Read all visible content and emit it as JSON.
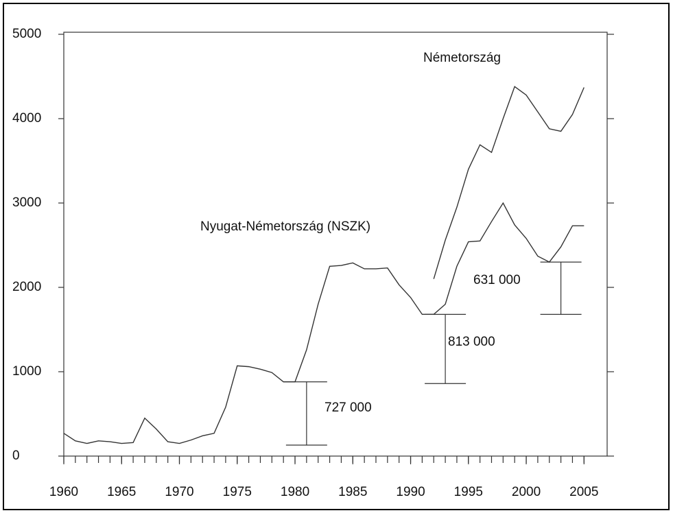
{
  "chart_data": {
    "type": "line",
    "x": [
      1960,
      1961,
      1962,
      1963,
      1964,
      1965,
      1966,
      1967,
      1968,
      1969,
      1970,
      1971,
      1972,
      1973,
      1974,
      1975,
      1976,
      1977,
      1978,
      1979,
      1980,
      1981,
      1982,
      1983,
      1984,
      1985,
      1986,
      1987,
      1988,
      1989,
      1990,
      1991,
      1992,
      1993,
      1994,
      1995,
      1996,
      1997,
      1998,
      1999,
      2000,
      2001,
      2002,
      2003,
      2004,
      2005
    ],
    "series": [
      {
        "name": "Nyugat-Németország (NSZK)",
        "color": "#333333",
        "values": [
          270,
          180,
          150,
          180,
          170,
          150,
          160,
          450,
          320,
          170,
          150,
          190,
          240,
          270,
          580,
          1070,
          1060,
          1030,
          990,
          880,
          880,
          1260,
          1800,
          2250,
          2260,
          2290,
          2220,
          2220,
          2230,
          2030,
          1880,
          1680,
          1680,
          1800,
          2250,
          2540,
          2550,
          2780,
          3000,
          2740,
          2580,
          2370,
          2300,
          2480,
          2730,
          2730
        ]
      },
      {
        "name": "Németország",
        "color": "#333333",
        "values": [
          null,
          null,
          null,
          null,
          null,
          null,
          null,
          null,
          null,
          null,
          null,
          null,
          null,
          null,
          null,
          null,
          null,
          null,
          null,
          null,
          null,
          null,
          null,
          null,
          null,
          null,
          null,
          null,
          null,
          null,
          null,
          null,
          2100,
          2560,
          2950,
          3400,
          3690,
          3600,
          4000,
          4380,
          4280,
          4080,
          3880,
          3850,
          4050,
          4370
        ]
      }
    ],
    "ranges": [
      {
        "x": 1981,
        "high": 880,
        "low": 130,
        "label": "727 000"
      },
      {
        "x": 1993,
        "high": 1680,
        "low": 860,
        "label": "813 000"
      },
      {
        "x": 2003,
        "high": 2300,
        "low": 1680,
        "label": "631 000"
      }
    ],
    "xlim": [
      1960,
      2007
    ],
    "xticks": [
      1960,
      1965,
      1970,
      1975,
      1980,
      1985,
      1990,
      1995,
      2000,
      2005
    ],
    "ylim": [
      0,
      5000
    ],
    "yticks": [
      0,
      1000,
      2000,
      3000,
      4000,
      5000
    ]
  }
}
